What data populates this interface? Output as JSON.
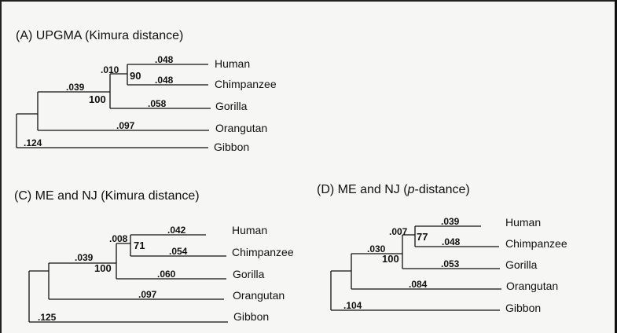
{
  "panels": {
    "a": {
      "title": "(A)  UPGMA (Kimura distance)",
      "taxa": [
        "Human",
        "Chimpanzee",
        "Gorilla",
        "Orangutan",
        "Gibbon"
      ],
      "branch_lengths": {
        "human": ".048",
        "chimpanzee": ".048",
        "hc_internal": ".010",
        "gorilla": ".058",
        "hcg_internal": ".039",
        "orangutan": ".097",
        "gibbon": ".124"
      },
      "bootstrap": {
        "hc": "90",
        "hcg": "100"
      }
    },
    "c": {
      "title": "(C) ME and NJ (Kimura distance)",
      "taxa": [
        "Human",
        "Chimpanzee",
        "Gorilla",
        "Orangutan",
        "Gibbon"
      ],
      "branch_lengths": {
        "human": ".042",
        "chimpanzee": ".054",
        "hc_internal": ".008",
        "gorilla": ".060",
        "hcg_internal": ".039",
        "orangutan": ".097",
        "gibbon": ".125"
      },
      "bootstrap": {
        "hc": "71",
        "hcg": "100"
      }
    },
    "d": {
      "title": "(D) ME and NJ (p-distance)",
      "title_prefix": "(D) ME and NJ (",
      "title_italic": "p",
      "title_suffix": "-distance)",
      "taxa": [
        "Human",
        "Chimpanzee",
        "Gorilla",
        "Orangutan",
        "Gibbon"
      ],
      "branch_lengths": {
        "human": ".039",
        "chimpanzee": ".048",
        "hc_internal": ".007",
        "gorilla": ".053",
        "hcg_internal": ".030",
        "orangutan": ".084",
        "gibbon": ".104"
      },
      "bootstrap": {
        "hc": "77",
        "hcg": "100"
      }
    }
  }
}
